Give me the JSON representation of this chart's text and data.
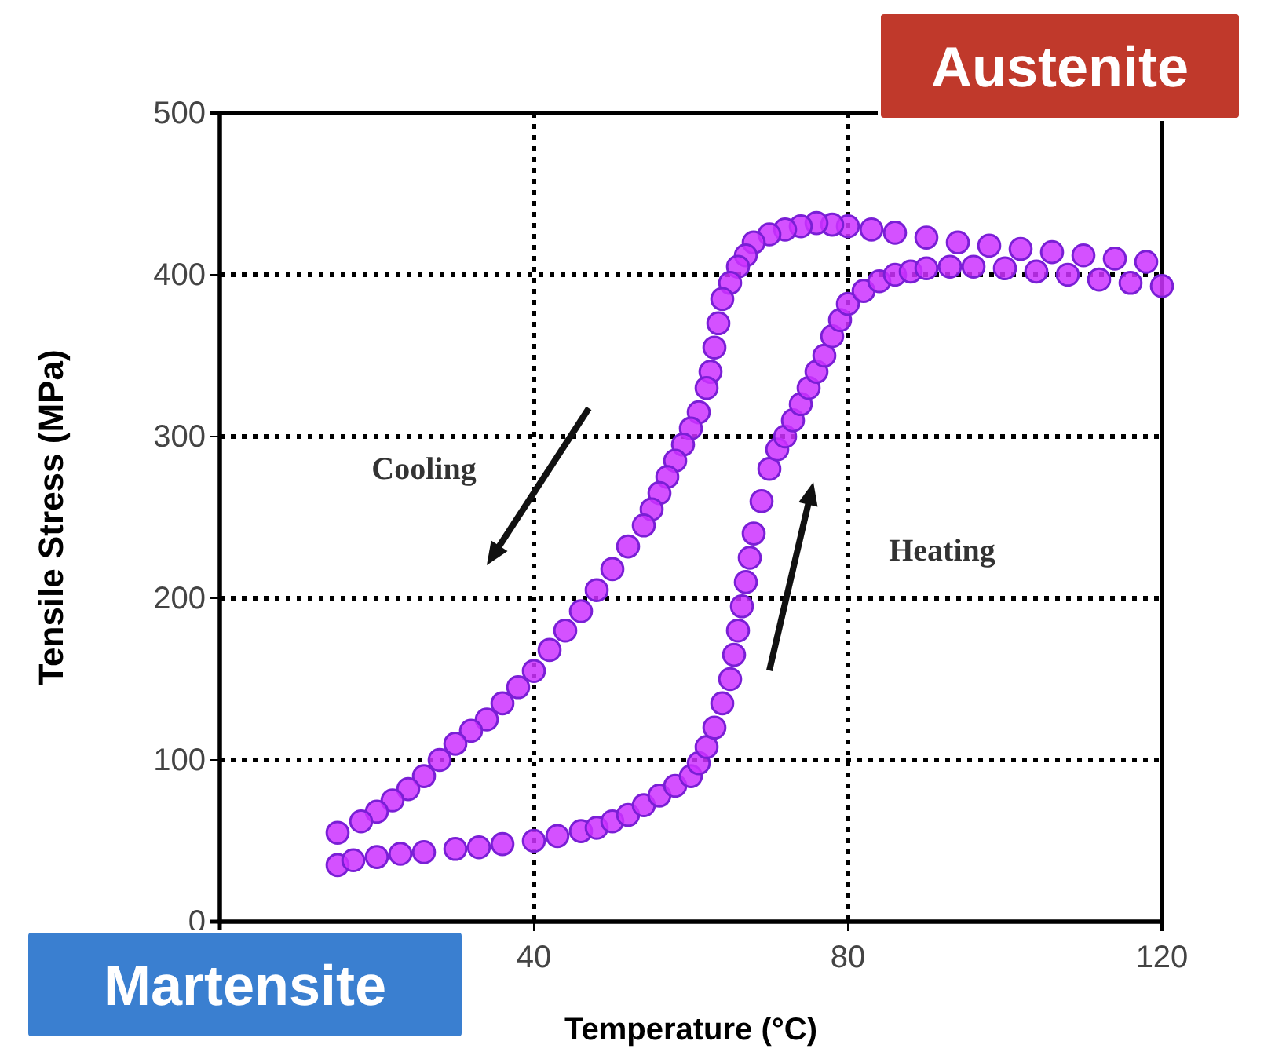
{
  "chart_data": {
    "type": "scatter",
    "xlabel": "Temperature (°C)",
    "ylabel": "Tensile Stress (MPa)",
    "xlim": [
      0,
      120
    ],
    "xticks": [
      40,
      80,
      120
    ],
    "ylim": [
      0,
      500
    ],
    "yticks": [
      0,
      100,
      200,
      300,
      400,
      500
    ],
    "grid": true,
    "marker": "circle",
    "annotations": [
      "Cooling",
      "Heating",
      "Austenite",
      "Martensite"
    ],
    "series": [
      {
        "color": "#cc33ff",
        "x": [
          15,
          17,
          20,
          23,
          26,
          30,
          33,
          36,
          40,
          43,
          46,
          48,
          50,
          52,
          54,
          56,
          58,
          60,
          61,
          62,
          63,
          64,
          65,
          65.5,
          66,
          66.5,
          67,
          67.5,
          68,
          69,
          70,
          71,
          72,
          73,
          74,
          75,
          76,
          77,
          78,
          79,
          80,
          82,
          84,
          86,
          88,
          90,
          93,
          96,
          100,
          104,
          108,
          112,
          116,
          120
        ],
        "values": [
          35,
          38,
          40,
          42,
          43,
          45,
          46,
          48,
          50,
          53,
          56,
          58,
          62,
          66,
          72,
          78,
          84,
          90,
          98,
          108,
          120,
          135,
          150,
          165,
          180,
          195,
          210,
          225,
          240,
          260,
          280,
          292,
          300,
          310,
          320,
          330,
          340,
          350,
          362,
          372,
          382,
          390,
          396,
          400,
          402,
          404,
          405,
          405,
          404,
          402,
          400,
          397,
          395,
          393
        ]
      },
      {
        "color": "#cc33ff",
        "x": [
          118,
          114,
          110,
          106,
          102,
          98,
          94,
          90,
          86,
          83,
          80,
          78,
          76,
          74,
          72,
          70,
          68,
          67,
          66,
          65,
          64,
          63.5,
          63,
          62.5,
          62,
          61,
          60,
          59,
          58,
          57,
          56,
          55,
          54,
          52,
          50,
          48,
          46,
          44,
          42,
          40,
          38,
          36,
          34,
          32,
          30,
          28,
          26,
          24,
          22,
          20,
          18,
          15
        ],
        "values": [
          408,
          410,
          412,
          414,
          416,
          418,
          420,
          423,
          426,
          428,
          430,
          431,
          432,
          430,
          428,
          425,
          420,
          412,
          405,
          395,
          385,
          370,
          355,
          340,
          330,
          315,
          305,
          295,
          285,
          275,
          265,
          255,
          245,
          232,
          218,
          205,
          192,
          180,
          168,
          155,
          145,
          135,
          125,
          118,
          110,
          100,
          90,
          82,
          75,
          68,
          62,
          55
        ]
      }
    ]
  }
}
